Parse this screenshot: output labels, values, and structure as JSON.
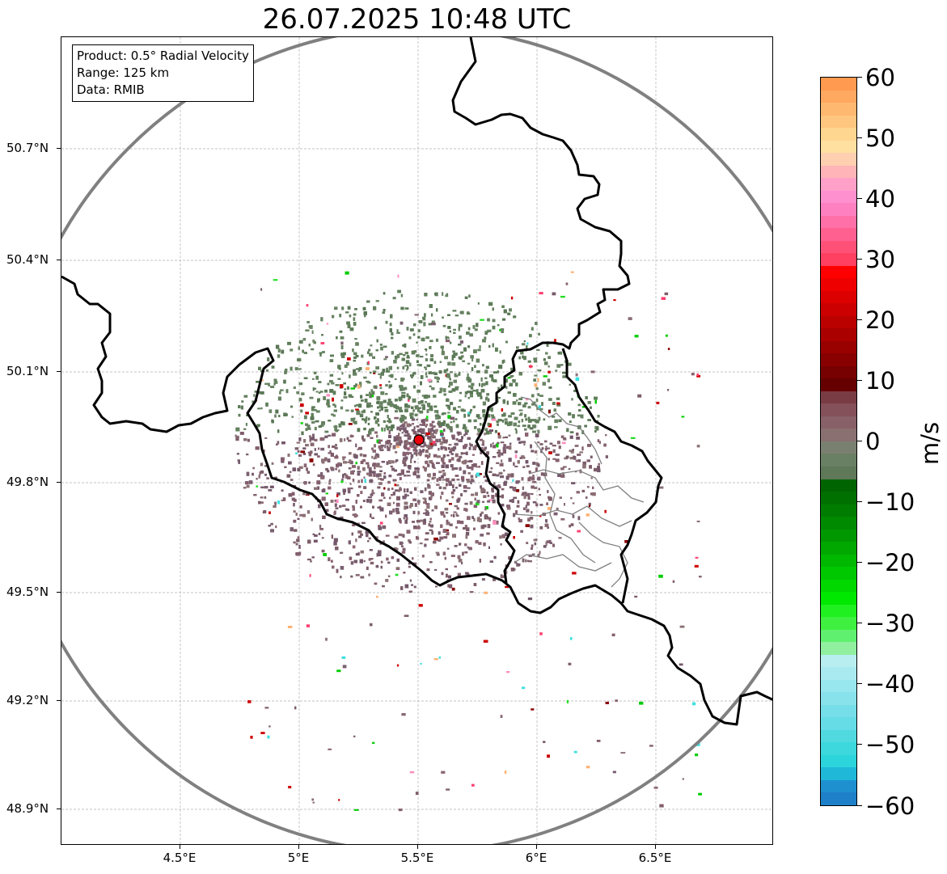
{
  "title": "26.07.2025 10:48 UTC",
  "info_box": {
    "product": "Product: 0.5° Radial Velocity",
    "range": "Range: 125 km",
    "data": "Data: RMIB"
  },
  "axes": {
    "lat_ticks": [
      "50.7°N",
      "50.4°N",
      "50.1°N",
      "49.8°N",
      "49.5°N",
      "49.2°N",
      "48.9°N"
    ],
    "lon_ticks": [
      "4.5°E",
      "5°E",
      "5.5°E",
      "6°E",
      "6.5°E"
    ]
  },
  "colorbar": {
    "label": "m/s",
    "ticks": [
      "60",
      "50",
      "40",
      "30",
      "20",
      "10",
      "0",
      "−10",
      "−20",
      "−30",
      "−40",
      "−50",
      "−60"
    ],
    "range": [
      -60,
      60
    ]
  },
  "colors": {
    "range_ring": "#808080",
    "radar_site": "#e8000b",
    "border": "#000000",
    "receding": "#7d5e6a",
    "approaching": "#637e5c"
  },
  "icons": {
    "radar_site": "red-dot-icon"
  }
}
